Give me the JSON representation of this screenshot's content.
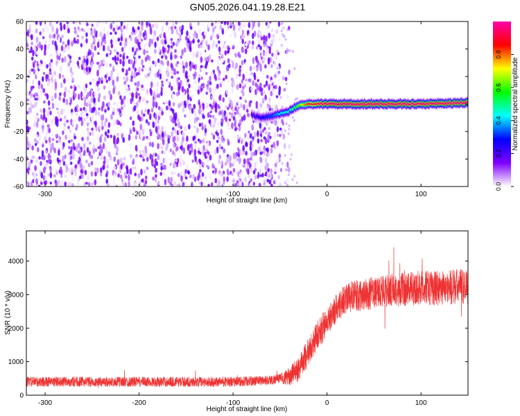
{
  "title": "GN05.2026.041.19.28.E21",
  "chart_data": [
    {
      "type": "heatmap",
      "xlabel": "Height of straight line (km)",
      "ylabel": "Frequency (Hz)",
      "xlim": [
        -320,
        150
      ],
      "ylim": [
        -60,
        60
      ],
      "xticks": [
        -300,
        -200,
        -100,
        0,
        100
      ],
      "yticks": [
        -60,
        -40,
        -20,
        0,
        20,
        40,
        60
      ],
      "grid": false,
      "colorbar": {
        "label": "Normalized spectral amplitude",
        "range": [
          0,
          1
        ],
        "ticks": [
          0.0,
          0.2,
          0.4,
          0.6,
          0.8
        ],
        "colors": [
          "#ffffff",
          "#7f00ff",
          "#0000ff",
          "#00ffff",
          "#00ff00",
          "#ffff00",
          "#ff0000",
          "#ff00aa"
        ]
      },
      "noise_region_x": [
        -320,
        -50
      ],
      "noise_amplitude_range": [
        0.0,
        0.2
      ],
      "signal_track": [
        {
          "x": -80,
          "y": -8,
          "amplitude": 0.2
        },
        {
          "x": -70,
          "y": -10,
          "amplitude": 0.25
        },
        {
          "x": -60,
          "y": -9,
          "amplitude": 0.3
        },
        {
          "x": -50,
          "y": -7,
          "amplitude": 0.4
        },
        {
          "x": -40,
          "y": -5,
          "amplitude": 0.45
        },
        {
          "x": -30,
          "y": -1,
          "amplitude": 0.6
        },
        {
          "x": -20,
          "y": 0,
          "amplitude": 0.85
        },
        {
          "x": 0,
          "y": 0,
          "amplitude": 0.95
        },
        {
          "x": 50,
          "y": 0,
          "amplitude": 0.95
        },
        {
          "x": 100,
          "y": 0,
          "amplitude": 0.95
        },
        {
          "x": 150,
          "y": 1,
          "amplitude": 0.95
        }
      ]
    },
    {
      "type": "line",
      "xlabel": "Height of straight line (km)",
      "ylabel": "SNR (10 * v/v)",
      "xlim": [
        -320,
        150
      ],
      "ylim": [
        0,
        4900
      ],
      "xticks": [
        -300,
        -200,
        -100,
        0,
        100
      ],
      "yticks": [
        0,
        1000,
        2000,
        3000,
        4000
      ],
      "grid": false,
      "color": "#ee3333",
      "series": [
        {
          "x": [
            -320,
            -300,
            -250,
            -200,
            -150,
            -100,
            -60,
            -40,
            -30,
            -20,
            -10,
            0,
            10,
            20,
            40,
            60,
            80,
            100,
            120,
            150
          ],
          "values": [
            400,
            400,
            400,
            400,
            400,
            400,
            450,
            550,
            800,
            1300,
            1800,
            2200,
            2600,
            2900,
            3000,
            3100,
            3150,
            3200,
            3200,
            3250
          ]
        }
      ],
      "noise_amplitude": [
        {
          "x": -320,
          "value": 150
        },
        {
          "x": -50,
          "value": 150
        },
        {
          "x": -30,
          "value": 400
        },
        {
          "x": 0,
          "value": 450
        },
        {
          "x": 150,
          "value": 550
        }
      ]
    }
  ]
}
